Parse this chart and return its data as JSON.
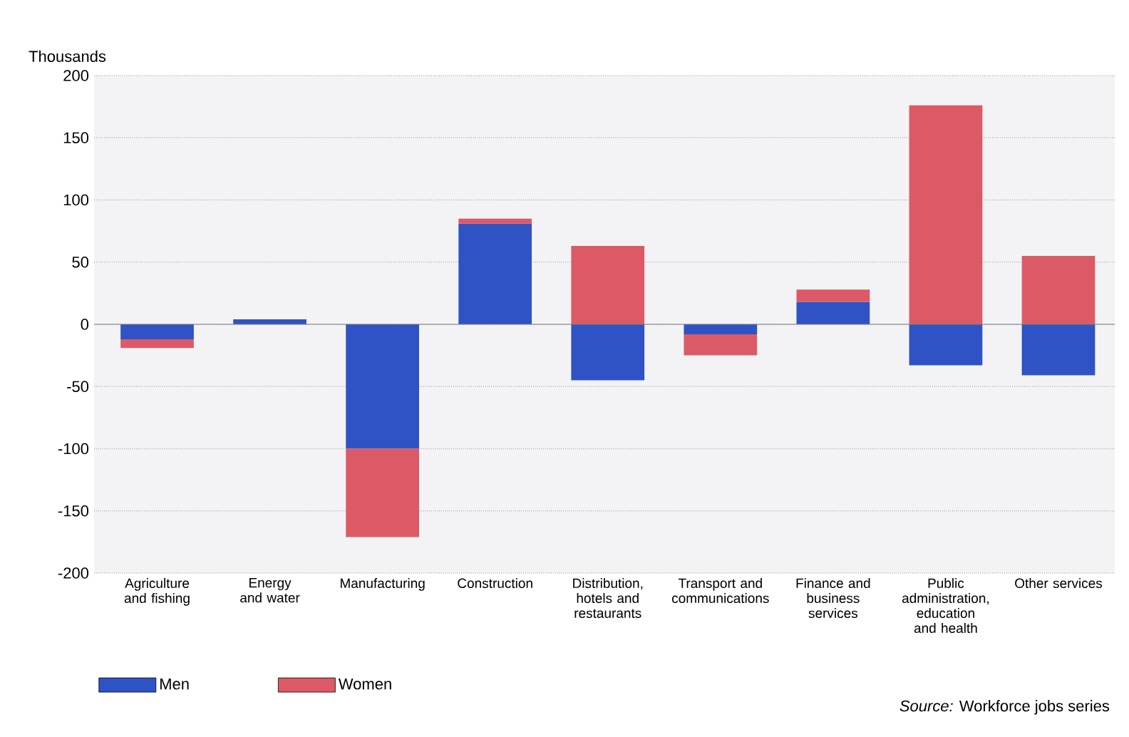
{
  "chart_data": {
    "type": "bar",
    "stacked": true,
    "ylabel": "Thousands",
    "categories": [
      "Agriculture and fishing",
      "Energy and water",
      "Manufacturing",
      "Construction",
      "Distribution, hotels and restaurants",
      "Transport and communications",
      "Finance and business services",
      "Public administration, education and health",
      "Other services"
    ],
    "series": [
      {
        "name": "Men",
        "color": "#2f52c4",
        "values": [
          -12,
          4,
          -100,
          81,
          -45,
          -8,
          18,
          -33,
          -41
        ]
      },
      {
        "name": "Women",
        "color": "#dc5a66",
        "values": [
          -7,
          null,
          -71,
          4,
          63,
          -17,
          10,
          176,
          55
        ]
      }
    ],
    "ylim": [
      -200,
      200
    ],
    "yticks": [
      -200,
      -150,
      -100,
      -50,
      0,
      50,
      100,
      150,
      200
    ],
    "grid": "y",
    "legend": "bottom left",
    "annotations": [
      "*Source:* Workforce jobs series"
    ]
  }
}
